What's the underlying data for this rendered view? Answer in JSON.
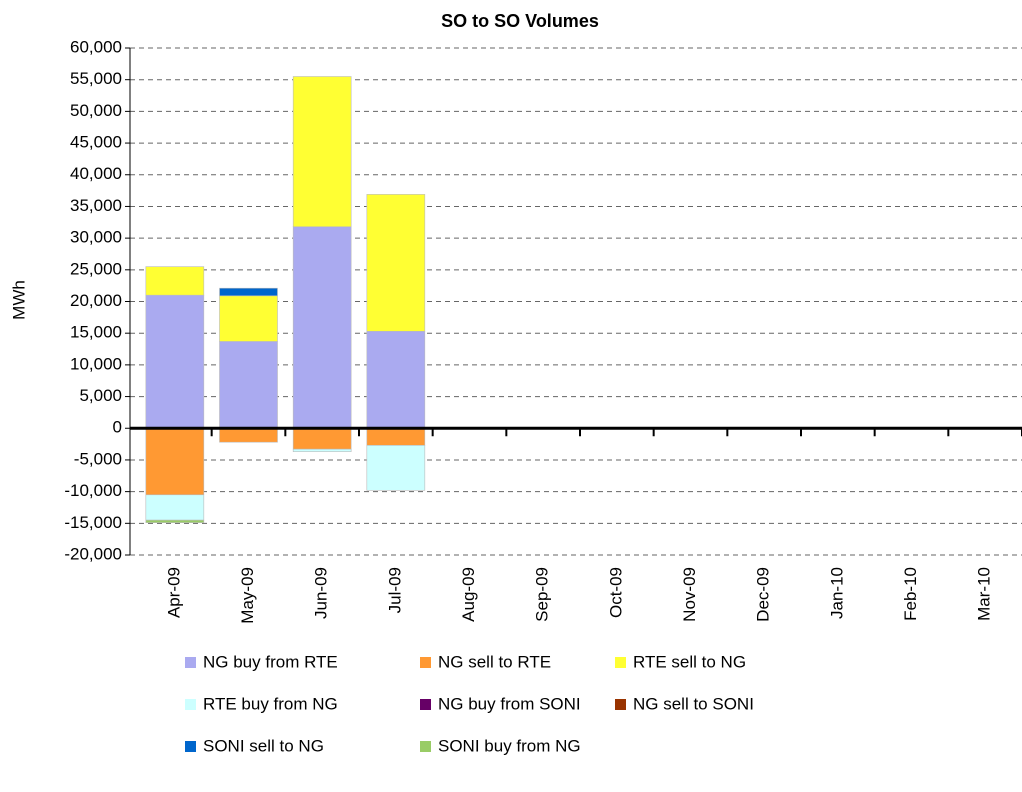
{
  "chart_data": {
    "type": "stacked_bar",
    "title": "SO to SO Volumes",
    "y_label": "MWh",
    "categories": [
      "Apr-09",
      "May-09",
      "Jun-09",
      "Jul-09",
      "Aug-09",
      "Sep-09",
      "Oct-09",
      "Nov-09",
      "Dec-09",
      "Jan-10",
      "Feb-10",
      "Mar-10"
    ],
    "series": [
      {
        "name": "NG buy from RTE",
        "color": "#aaaaf0",
        "values": [
          21000,
          13700,
          31800,
          15300,
          null,
          null,
          null,
          null,
          null,
          null,
          null,
          null
        ]
      },
      {
        "name": "NG sell to RTE",
        "color": "#ff9933",
        "values": [
          -10500,
          -2200,
          -3300,
          -2700,
          null,
          null,
          null,
          null,
          null,
          null,
          null,
          null
        ]
      },
      {
        "name": "RTE sell to NG",
        "color": "#ffff33",
        "values": [
          4500,
          7200,
          23700,
          21600,
          null,
          null,
          null,
          null,
          null,
          null,
          null,
          null
        ]
      },
      {
        "name": "RTE buy from NG",
        "color": "#ccffff",
        "values": [
          -4000,
          null,
          -400,
          -7100,
          null,
          null,
          null,
          null,
          null,
          null,
          null,
          null
        ]
      },
      {
        "name": "NG buy from SONI",
        "color": "#660066",
        "values": [
          null,
          null,
          null,
          null,
          null,
          null,
          null,
          null,
          null,
          null,
          null,
          null
        ]
      },
      {
        "name": "NG sell to SONI",
        "color": "#993300",
        "values": [
          null,
          null,
          null,
          null,
          null,
          null,
          null,
          null,
          null,
          null,
          null,
          null
        ]
      },
      {
        "name": "SONI sell to NG",
        "color": "#0066cc",
        "values": [
          null,
          1200,
          null,
          null,
          null,
          null,
          null,
          null,
          null,
          null,
          null,
          null
        ]
      },
      {
        "name": "SONI buy from NG",
        "color": "#99cc66",
        "values": [
          -400,
          null,
          null,
          null,
          null,
          null,
          null,
          null,
          null,
          null,
          null,
          null
        ]
      }
    ],
    "ylim": [
      -20000,
      60000
    ],
    "yticks": [
      {
        "value": -20000,
        "label": "-20,000"
      },
      {
        "value": -15000,
        "label": "-15,000"
      },
      {
        "value": -10000,
        "label": "-10,000"
      },
      {
        "value": -5000,
        "label": "-5,000"
      },
      0,
      {
        "value": 5000,
        "label": "5,000"
      },
      {
        "value": 10000,
        "label": "10,000"
      },
      {
        "value": 15000,
        "label": "15,000"
      },
      {
        "value": 20000,
        "label": "20,000"
      },
      {
        "value": 25000,
        "label": "25,000"
      },
      {
        "value": 30000,
        "label": "30,000"
      },
      {
        "value": 35000,
        "label": "35,000"
      },
      {
        "value": 40000,
        "label": "40,000"
      },
      {
        "value": 45000,
        "label": "45,000"
      },
      {
        "value": 50000,
        "label": "50,000"
      },
      {
        "value": 55000,
        "label": "55,000"
      },
      {
        "value": 60000,
        "label": "60,000"
      }
    ],
    "grid": true,
    "legend": "bottom"
  }
}
